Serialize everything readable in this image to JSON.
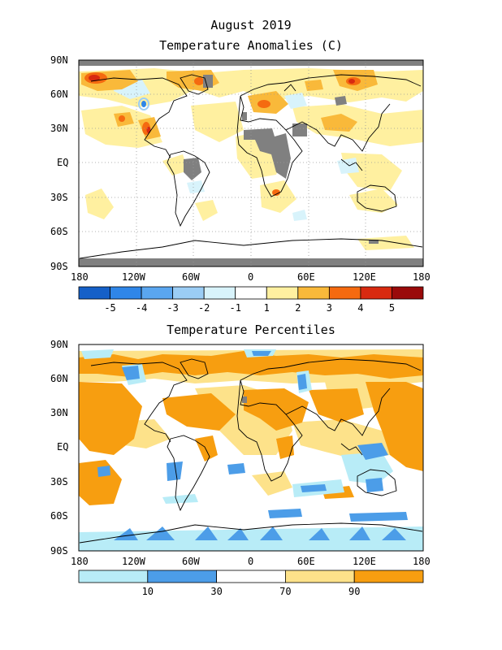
{
  "header": {
    "date": "August 2019",
    "title1": "Temperature Anomalies (C)",
    "title2": "Temperature Percentiles"
  },
  "axes": {
    "lat_labels": [
      "90N",
      "60N",
      "30N",
      "EQ",
      "30S",
      "60S",
      "90S"
    ],
    "lon_labels": [
      "180",
      "120W",
      "60W",
      "0",
      "60E",
      "120E",
      "180"
    ]
  },
  "anomaly_legend": {
    "colors": [
      "#1560c8",
      "#2f86e8",
      "#5aa6f0",
      "#9bcdf5",
      "#d8f3fb",
      "#ffffff",
      "#fff0a0",
      "#f9b93a",
      "#f56a10",
      "#d82a10",
      "#9a0a0a"
    ],
    "labels": [
      "-5",
      "-4",
      "-3",
      "-2",
      "-1",
      "1",
      "2",
      "3",
      "4",
      "5"
    ]
  },
  "percentile_legend": {
    "colors": [
      "#b8ecf7",
      "#4c9de8",
      "#ffffff",
      "#fde28a",
      "#f79e10"
    ],
    "labels": [
      "10",
      "30",
      "70",
      "90"
    ]
  },
  "colors": {
    "missing": "#808080",
    "land_outline": "#000000",
    "grid": "#999999"
  }
}
